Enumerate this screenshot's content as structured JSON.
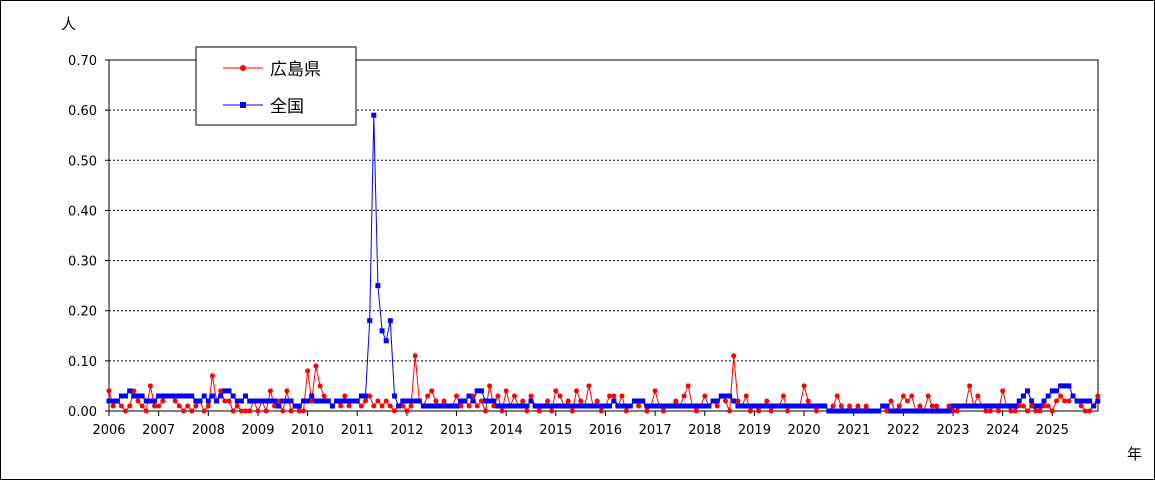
{
  "chart_data": {
    "type": "line",
    "ylabel": "人",
    "xlabel": "年",
    "ylim": [
      0,
      0.7
    ],
    "y_ticks": [
      "0.00",
      "0.10",
      "0.20",
      "0.30",
      "0.40",
      "0.50",
      "0.60",
      "0.70"
    ],
    "x_start": 2006,
    "x_end": 2025.92,
    "x_ticks": [
      "2006",
      "2007",
      "2008",
      "2009",
      "2010",
      "2011",
      "2012",
      "2013",
      "2014",
      "2015",
      "2016",
      "2017",
      "2018",
      "2019",
      "2020",
      "2021",
      "2022",
      "2023",
      "2024",
      "2025"
    ],
    "grid": "horizontal-dashed",
    "legend_position": "top-left",
    "series": [
      {
        "name": "広島県",
        "color": "#ff0000",
        "marker": "circle",
        "monthly_values": [
          0.04,
          0.01,
          0.02,
          0.01,
          0,
          0.01,
          0.04,
          0.02,
          0.01,
          0,
          0.05,
          0.01,
          0.01,
          0.02,
          0.03,
          0.03,
          0.02,
          0.01,
          0,
          0.01,
          0,
          0.01,
          0.02,
          0,
          0.01,
          0.07,
          0.02,
          0.04,
          0.02,
          0.02,
          0,
          0.01,
          0,
          0,
          0,
          0.02,
          0,
          0.02,
          0,
          0.04,
          0.01,
          0.02,
          0,
          0.04,
          0,
          0.01,
          0,
          0,
          0.08,
          0.02,
          0.09,
          0.05,
          0.03,
          0.02,
          0.01,
          0.02,
          0.01,
          0.03,
          0.01,
          0.02,
          0.02,
          0.01,
          0.02,
          0.03,
          0.01,
          0.02,
          0.01,
          0.02,
          0.01,
          0,
          0.01,
          0.01,
          0,
          0.01,
          0.11,
          0.02,
          0.01,
          0.03,
          0.04,
          0.02,
          0.01,
          0.02,
          0.01,
          0.01,
          0.03,
          0.01,
          0.02,
          0.01,
          0.03,
          0.01,
          0.02,
          0,
          0.05,
          0.01,
          0.03,
          0,
          0.04,
          0.01,
          0.03,
          0.01,
          0.02,
          0,
          0.03,
          0.01,
          0,
          0.01,
          0.02,
          0,
          0.04,
          0.03,
          0.01,
          0.02,
          0,
          0.04,
          0.02,
          0.01,
          0.05,
          0.01,
          0.02,
          0,
          0.01,
          0.03,
          0.03,
          0.01,
          0.03,
          0,
          0.01,
          0.02,
          0.01,
          0.02,
          0,
          0.01,
          0.04,
          0.01,
          0,
          0.01,
          0.01,
          0.02,
          0.01,
          0.03,
          0.05,
          0.01,
          0,
          0.01,
          0.03,
          0.01,
          0.02,
          0.01,
          0.03,
          0.02,
          0,
          0.11,
          0.02,
          0.01,
          0.03,
          0,
          0.01,
          0,
          0.01,
          0.02,
          0,
          0.01,
          0.01,
          0.03,
          0,
          0.01,
          0.01,
          0.01,
          0.05,
          0.02,
          0.01,
          0,
          0.01,
          0.01,
          0,
          0.01,
          0.03,
          0.01,
          0,
          0.01,
          0,
          0.01,
          0,
          0.01,
          0,
          0,
          0,
          0.01,
          0,
          0.02,
          0,
          0.01,
          0.03,
          0.02,
          0.03,
          0,
          0.01,
          0,
          0.03,
          0.01,
          0.01,
          0,
          0,
          0.01,
          0,
          0,
          0.01,
          0.01,
          0.05,
          0.01,
          0.03,
          0.01,
          0,
          0,
          0.01,
          0,
          0.04,
          0.01,
          0,
          0,
          0.01,
          0.01,
          0,
          0.01,
          0,
          0,
          0.01,
          0.01,
          0,
          0.02,
          0.03,
          0.02,
          0.02,
          0.03,
          0.02,
          0.01,
          0,
          0,
          0.01,
          0.03
        ]
      },
      {
        "name": "全国",
        "color": "#0000ff",
        "marker": "square",
        "monthly_values": [
          0.02,
          0.02,
          0.02,
          0.03,
          0.03,
          0.04,
          0.03,
          0.03,
          0.03,
          0.02,
          0.02,
          0.02,
          0.03,
          0.03,
          0.03,
          0.03,
          0.03,
          0.03,
          0.03,
          0.03,
          0.03,
          0.02,
          0.02,
          0.03,
          0.02,
          0.03,
          0.02,
          0.03,
          0.04,
          0.04,
          0.03,
          0.02,
          0.02,
          0.03,
          0.02,
          0.02,
          0.02,
          0.02,
          0.02,
          0.02,
          0.02,
          0.01,
          0.02,
          0.02,
          0.02,
          0.01,
          0.01,
          0.02,
          0.02,
          0.03,
          0.02,
          0.02,
          0.02,
          0.02,
          0.01,
          0.02,
          0.02,
          0.02,
          0.02,
          0.02,
          0.02,
          0.03,
          0.03,
          0.18,
          0.59,
          0.25,
          0.16,
          0.14,
          0.18,
          0.03,
          0.01,
          0.02,
          0.02,
          0.02,
          0.02,
          0.02,
          0.01,
          0.01,
          0.01,
          0.01,
          0.01,
          0.01,
          0.01,
          0.01,
          0.01,
          0.02,
          0.02,
          0.03,
          0.02,
          0.04,
          0.04,
          0.02,
          0.02,
          0.02,
          0.01,
          0.01,
          0.01,
          0.01,
          0.01,
          0.01,
          0.01,
          0.01,
          0.02,
          0.01,
          0.01,
          0.01,
          0.01,
          0.01,
          0.01,
          0.01,
          0.01,
          0.01,
          0.01,
          0.01,
          0.01,
          0.01,
          0.01,
          0.01,
          0.01,
          0.01,
          0.01,
          0.01,
          0.02,
          0.01,
          0.01,
          0.01,
          0.01,
          0.02,
          0.02,
          0.02,
          0.01,
          0.01,
          0.01,
          0.01,
          0.01,
          0.01,
          0.01,
          0.01,
          0.01,
          0.01,
          0.01,
          0.01,
          0.01,
          0.01,
          0.01,
          0.01,
          0.02,
          0.02,
          0.03,
          0.03,
          0.03,
          0.02,
          0.01,
          0.01,
          0.01,
          0.01,
          0.01,
          0.01,
          0.01,
          0.01,
          0.01,
          0.01,
          0.01,
          0.01,
          0.01,
          0.01,
          0.01,
          0.01,
          0.01,
          0.01,
          0.01,
          0.01,
          0.01,
          0.01,
          0,
          0,
          0,
          0,
          0,
          0,
          0,
          0,
          0,
          0,
          0,
          0,
          0,
          0.01,
          0.01,
          0,
          0,
          0,
          0,
          0,
          0,
          0,
          0,
          0,
          0,
          0,
          0,
          0,
          0,
          0,
          0.01,
          0.01,
          0.01,
          0.01,
          0.01,
          0.01,
          0.01,
          0.01,
          0.01,
          0.01,
          0.01,
          0.01,
          0.01,
          0.01,
          0.01,
          0.01,
          0.02,
          0.03,
          0.04,
          0.02,
          0.01,
          0.01,
          0.02,
          0.03,
          0.04,
          0.04,
          0.05,
          0.05,
          0.05,
          0.03,
          0.02,
          0.02,
          0.02,
          0.02,
          0.01,
          0.02
        ]
      }
    ]
  }
}
